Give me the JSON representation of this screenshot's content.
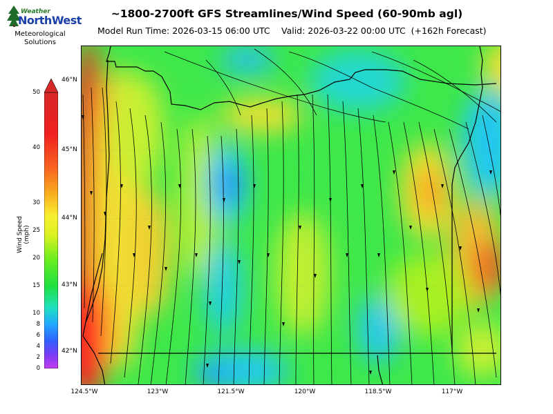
{
  "logo": {
    "weather": "Weather",
    "brand": "NorthWest",
    "sub_line1": "Meteorological",
    "sub_line2": "Solutions"
  },
  "header": {
    "title": "~1800-2700ft GFS Streamlines/Wind Speed (60-90mb agl)",
    "model_run": "Model Run Time: 2026-03-15 06:00 UTC",
    "valid": "Valid: 2026-03-22 00:00 UTC  (+162h Forecast)"
  },
  "map": {
    "lat_labels": [
      "46°N",
      "45°N",
      "44°N",
      "43°N",
      "42°N"
    ],
    "lon_labels": [
      "124.5°W",
      "123°W",
      "121.5°W",
      "120°W",
      "118.5°W",
      "117°W"
    ]
  },
  "colorbar": {
    "label": "Wind Speed (mph)",
    "ticks": [
      "50",
      "40",
      "30",
      "25",
      "20",
      "15",
      "10",
      "8",
      "6",
      "4",
      "2",
      "0"
    ],
    "colors": [
      "#c23cf0",
      "#7a3cf5",
      "#3060ff",
      "#20a8ff",
      "#20e0c0",
      "#20e040",
      "#70ee20",
      "#d8f020",
      "#f8f030",
      "#f8b020",
      "#f86820",
      "#f02020",
      "#d82828"
    ]
  }
}
